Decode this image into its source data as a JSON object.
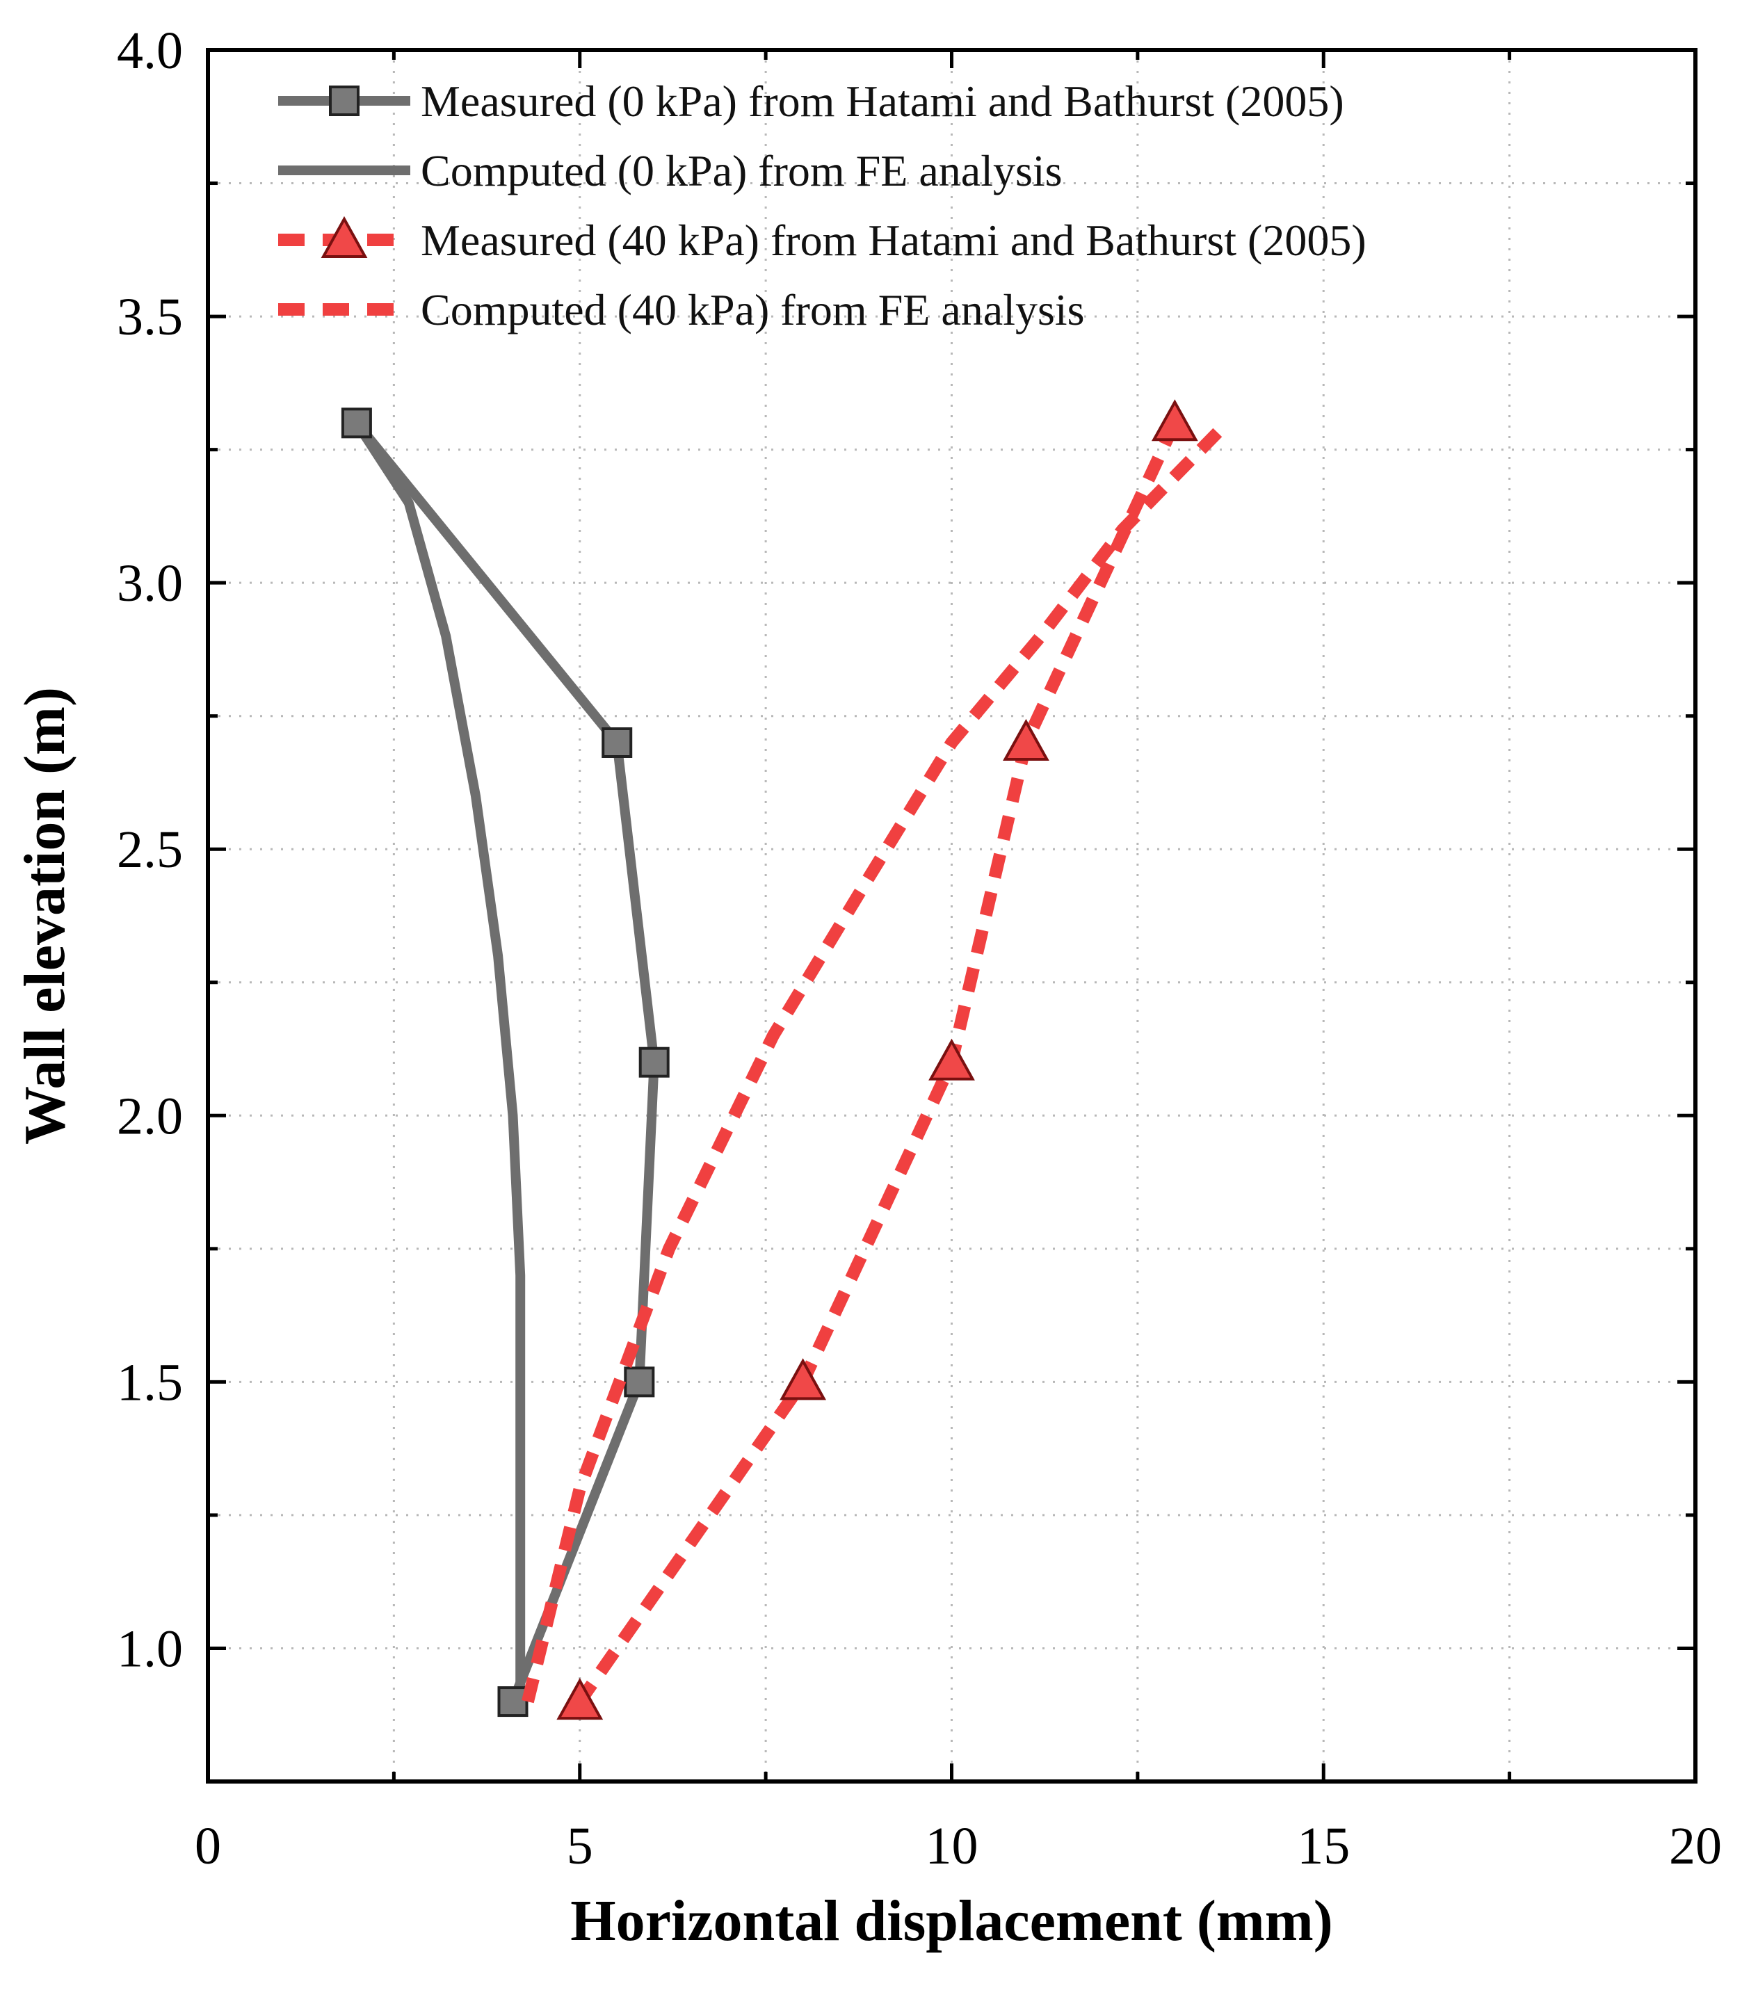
{
  "chart_data": {
    "type": "line",
    "title": "",
    "xlabel": "Horizontal displacement (mm)",
    "ylabel": "Wall elevation (m)",
    "xlim": [
      0,
      20
    ],
    "ylim": [
      0.75,
      4.0
    ],
    "xticks": [
      0,
      5,
      10,
      15,
      20
    ],
    "yticks": [
      1.0,
      1.5,
      2.0,
      2.5,
      3.0,
      3.5,
      4.0
    ],
    "xtick_labels": [
      "0",
      "5",
      "10",
      "15",
      "20"
    ],
    "ytick_labels": [
      "1.0",
      "1.5",
      "2.0",
      "2.5",
      "3.0",
      "3.5",
      "4.0"
    ],
    "grid": true,
    "legend_position": "top-left",
    "series": [
      {
        "name": "Measured (0 kPa) from Hatami and Bathurst (2005)",
        "color": "#6e6e6e",
        "style": "solid",
        "marker": "square",
        "x": [
          2.0,
          5.5,
          6.0,
          5.8,
          4.1
        ],
        "y": [
          3.3,
          2.7,
          2.1,
          1.5,
          0.9
        ]
      },
      {
        "name": "Computed (0 kPa) from FE analysis",
        "color": "#6e6e6e",
        "style": "solid",
        "marker": "none",
        "x": [
          4.2,
          4.2,
          4.2,
          4.1,
          3.9,
          3.6,
          3.2,
          2.7,
          2.0
        ],
        "y": [
          0.9,
          1.3,
          1.7,
          2.0,
          2.3,
          2.6,
          2.9,
          3.15,
          3.3
        ]
      },
      {
        "name": "Measured (40 kPa) from Hatami and Bathurst (2005)",
        "color": "#f04040",
        "style": "dashed",
        "marker": "triangle",
        "x": [
          13.0,
          11.0,
          10.0,
          8.0,
          5.0
        ],
        "y": [
          3.3,
          2.7,
          2.1,
          1.5,
          0.9
        ]
      },
      {
        "name": "Computed (40 kPa) from FE analysis",
        "color": "#f04040",
        "style": "dashed",
        "marker": "none",
        "x": [
          4.3,
          5.0,
          6.2,
          7.6,
          8.9,
          10.0,
          11.2,
          12.3,
          13.7
        ],
        "y": [
          0.9,
          1.3,
          1.75,
          2.15,
          2.45,
          2.7,
          2.9,
          3.1,
          3.3
        ]
      }
    ]
  }
}
